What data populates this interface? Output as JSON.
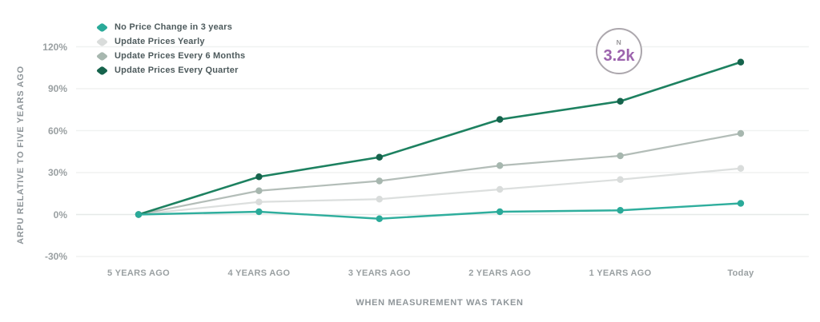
{
  "badge": {
    "top_label": "N",
    "value": "3.2k",
    "value_color": "#9c63ad",
    "border_color": "#aca7ad"
  },
  "chart_data": {
    "type": "line",
    "title": "",
    "xlabel": "WHEN MEASUREMENT WAS TAKEN",
    "ylabel": "ARPU RELATIVE TO FIVE YEARS AGO",
    "categories": [
      "5 YEARS AGO",
      "4 YEARS AGO",
      "3 YEARS AGO",
      "2 YEARS AGO",
      "1 YEARS AGO",
      "Today"
    ],
    "y_ticks": [
      {
        "label": "120%",
        "value": 120
      },
      {
        "label": "90%",
        "value": 90
      },
      {
        "label": "60%",
        "value": 60
      },
      {
        "label": "30%",
        "value": 30
      },
      {
        "label": "0%",
        "value": 0
      },
      {
        "label": "-30%",
        "value": -30
      }
    ],
    "ylim": [
      -30,
      120
    ],
    "grid": "horizontal-only",
    "legend_position": "top-left",
    "series": [
      {
        "name": "No Price Change in 3 years",
        "color": "#2fae9d",
        "marker_color": "#2aaa99",
        "line_width": 2.4,
        "values": [
          0,
          2,
          -3,
          2,
          3,
          8
        ]
      },
      {
        "name": "Update Prices Yearly",
        "color": "#dcdfde",
        "marker_color": "#d9dcdb",
        "line_width": 2.2,
        "values": [
          0,
          9,
          11,
          18,
          25,
          33
        ]
      },
      {
        "name": "Update Prices Every 6 Months",
        "color": "#b3bdb8",
        "marker_color": "#a7b7af",
        "line_width": 2.2,
        "values": [
          0,
          17,
          24,
          35,
          42,
          58
        ]
      },
      {
        "name": "Update Prices Every Quarter",
        "color": "#1d8160",
        "marker_color": "#16634c",
        "line_width": 2.6,
        "values": [
          0,
          27,
          41,
          68,
          81,
          109
        ]
      }
    ]
  }
}
